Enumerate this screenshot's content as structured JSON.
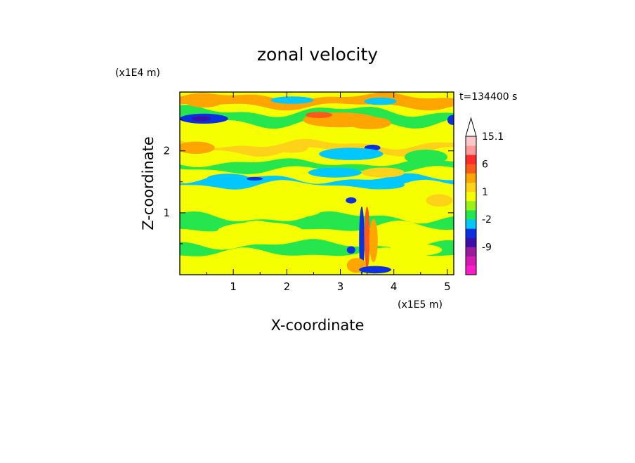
{
  "chart_data": {
    "type": "heatmap",
    "title": "zonal velocity",
    "xlabel": "X-coordinate",
    "ylabel": "Z-coordinate",
    "x_unit": "(x1E5 m)",
    "y_unit": "(x1E4 m)",
    "time_label": "t=134400 s",
    "xlim": [
      0,
      5.12
    ],
    "ylim": [
      0,
      2.95
    ],
    "x_ticks": [
      "1",
      "2",
      "3",
      "4",
      "5"
    ],
    "x_tick_values": [
      1,
      2,
      3,
      4,
      5
    ],
    "y_ticks": [
      "1",
      "2"
    ],
    "y_tick_values": [
      1,
      2
    ],
    "colorbar": {
      "labels": [
        {
          "text": "15.1",
          "level": 15.1
        },
        {
          "text": "6",
          "level": 6
        },
        {
          "text": "1",
          "level": 1
        },
        {
          "text": "-2",
          "level": -2
        },
        {
          "text": "-9",
          "level": -9
        }
      ],
      "levels": [
        -15,
        -12,
        -9,
        -6,
        -4,
        -2,
        -1,
        0,
        1,
        2,
        4,
        6,
        9,
        12,
        15.1
      ],
      "colors": [
        "#ff1cc8",
        "#d51ab3",
        "#9a1c9c",
        "#3a10a8",
        "#0a30e0",
        "#00c8ff",
        "#26e64d",
        "#99f21a",
        "#f5ff00",
        "#ffd21a",
        "#ffa500",
        "#ff5a1a",
        "#ff2a2a",
        "#ff9a9a",
        "#ffc8c8"
      ],
      "extend_top": true
    },
    "bands": [
      {
        "z": 2.8,
        "amp": 0.05,
        "thick": 0.15,
        "color": "#ffa500"
      },
      {
        "z": 2.55,
        "amp": 0.07,
        "thick": 0.18,
        "color": "#26e64d"
      },
      {
        "z": 2.05,
        "amp": 0.06,
        "thick": 0.12,
        "color": "#ffd21a"
      },
      {
        "z": 1.75,
        "amp": 0.05,
        "thick": 0.12,
        "color": "#26e64d"
      },
      {
        "z": 1.5,
        "amp": 0.06,
        "thick": 0.1,
        "color": "#00c8ff"
      },
      {
        "z": 1.22,
        "amp": 0.05,
        "thick": 0.12,
        "color": "#f5ff00"
      },
      {
        "z": 0.85,
        "amp": 0.07,
        "thick": 0.16,
        "color": "#26e64d"
      },
      {
        "z": 0.42,
        "amp": 0.06,
        "thick": 0.14,
        "color": "#26e64d"
      },
      {
        "z": 0.15,
        "amp": 0.04,
        "thick": 0.1,
        "color": "#f5ff00"
      }
    ],
    "blobs": [
      {
        "x": 0.45,
        "z": 2.52,
        "rx": 0.45,
        "rz": 0.08,
        "color": "#0a30e0"
      },
      {
        "x": 0.4,
        "z": 2.52,
        "rx": 0.18,
        "rz": 0.04,
        "color": "#3a10a8"
      },
      {
        "x": 0.45,
        "z": 2.8,
        "rx": 0.35,
        "rz": 0.1,
        "color": "#ffa500"
      },
      {
        "x": 0.3,
        "z": 2.05,
        "rx": 0.35,
        "rz": 0.1,
        "color": "#ffa500"
      },
      {
        "x": 3.0,
        "z": 2.5,
        "rx": 0.7,
        "rz": 0.12,
        "color": "#ffa500"
      },
      {
        "x": 2.6,
        "z": 2.58,
        "rx": 0.25,
        "rz": 0.05,
        "color": "#ff5a1a"
      },
      {
        "x": 3.55,
        "z": 2.45,
        "rx": 0.4,
        "rz": 0.1,
        "color": "#ffa500"
      },
      {
        "x": 2.1,
        "z": 2.82,
        "rx": 0.4,
        "rz": 0.06,
        "color": "#00c8ff"
      },
      {
        "x": 3.75,
        "z": 2.8,
        "rx": 0.3,
        "rz": 0.06,
        "color": "#00c8ff"
      },
      {
        "x": 5.1,
        "z": 2.5,
        "rx": 0.1,
        "rz": 0.08,
        "color": "#0a30e0"
      },
      {
        "x": 3.6,
        "z": 2.05,
        "rx": 0.15,
        "rz": 0.05,
        "color": "#0a30e0"
      },
      {
        "x": 3.2,
        "z": 1.95,
        "rx": 0.6,
        "rz": 0.1,
        "color": "#00c8ff"
      },
      {
        "x": 2.9,
        "z": 1.65,
        "rx": 0.5,
        "rz": 0.08,
        "color": "#00c8ff"
      },
      {
        "x": 3.8,
        "z": 1.45,
        "rx": 0.4,
        "rz": 0.07,
        "color": "#00c8ff"
      },
      {
        "x": 4.6,
        "z": 1.9,
        "rx": 0.4,
        "rz": 0.12,
        "color": "#26e64d"
      },
      {
        "x": 0.9,
        "z": 1.55,
        "rx": 0.4,
        "rz": 0.08,
        "color": "#00c8ff"
      },
      {
        "x": 1.4,
        "z": 1.55,
        "rx": 0.15,
        "rz": 0.03,
        "color": "#0a30e0"
      },
      {
        "x": 2.1,
        "z": 2.05,
        "rx": 0.3,
        "rz": 0.08,
        "color": "#ffd21a"
      },
      {
        "x": 3.8,
        "z": 1.65,
        "rx": 0.4,
        "rz": 0.08,
        "color": "#ffd21a"
      },
      {
        "x": 4.85,
        "z": 1.2,
        "rx": 0.25,
        "rz": 0.1,
        "color": "#ffd21a"
      },
      {
        "x": 3.2,
        "z": 1.2,
        "rx": 0.1,
        "rz": 0.05,
        "color": "#0a30e0"
      },
      {
        "x": 3.4,
        "z": 0.55,
        "rx": 0.05,
        "rz": 0.55,
        "color": "#0a30e0"
      },
      {
        "x": 3.5,
        "z": 0.6,
        "rx": 0.05,
        "rz": 0.5,
        "color": "#ff5a1a"
      },
      {
        "x": 3.62,
        "z": 0.55,
        "rx": 0.08,
        "rz": 0.35,
        "color": "#ffa500"
      },
      {
        "x": 3.3,
        "z": 0.15,
        "rx": 0.18,
        "rz": 0.12,
        "color": "#ffa500"
      },
      {
        "x": 3.65,
        "z": 0.08,
        "rx": 0.3,
        "rz": 0.06,
        "color": "#0a30e0"
      },
      {
        "x": 3.2,
        "z": 0.4,
        "rx": 0.08,
        "rz": 0.06,
        "color": "#0a30e0"
      },
      {
        "x": 1.5,
        "z": 0.7,
        "rx": 0.8,
        "rz": 0.15,
        "color": "#f5ff00"
      },
      {
        "x": 4.4,
        "z": 0.4,
        "rx": 0.5,
        "rz": 0.1,
        "color": "#f5ff00"
      },
      {
        "x": 2.2,
        "z": 1.05,
        "rx": 0.45,
        "rz": 0.12,
        "color": "#f5ff00"
      }
    ]
  }
}
